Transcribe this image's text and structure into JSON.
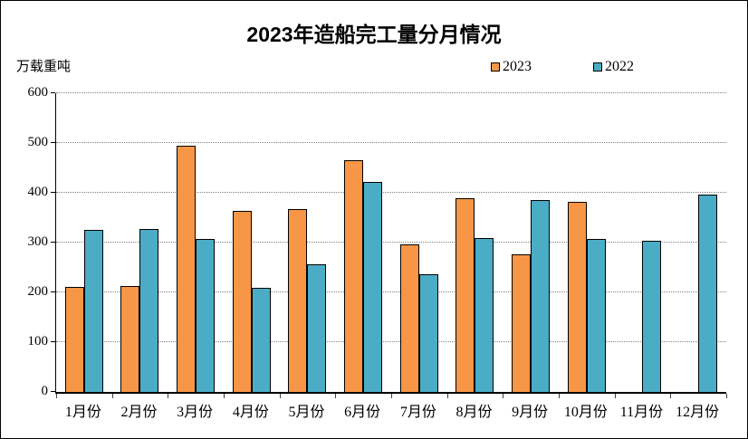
{
  "chart": {
    "title": "2023年造船完工量分月情况",
    "unit_label": "万载重吨"
  },
  "chart_data": {
    "type": "bar",
    "title": "2023年造船完工量分月情况",
    "xlabel": "",
    "ylabel": "万载重吨",
    "categories": [
      "1月份",
      "2月份",
      "3月份",
      "4月份",
      "5月份",
      "6月份",
      "7月份",
      "8月份",
      "9月份",
      "10月份",
      "11月份",
      "12月份"
    ],
    "series": [
      {
        "name": "2023",
        "color": "#F79646",
        "values": [
          211,
          212,
          494,
          363,
          368,
          465,
          297,
          389,
          277,
          381,
          null,
          null
        ]
      },
      {
        "name": "2022",
        "color": "#4BACC6",
        "values": [
          326,
          327,
          308,
          210,
          257,
          421,
          236,
          310,
          385,
          308,
          304,
          397
        ]
      }
    ],
    "ylim": [
      0,
      600
    ],
    "ytick_interval": 100,
    "grid": "horizontal-dotted",
    "gridline_color": "#808080",
    "legend_position": "top-right",
    "bar_border_color": "#000000"
  }
}
